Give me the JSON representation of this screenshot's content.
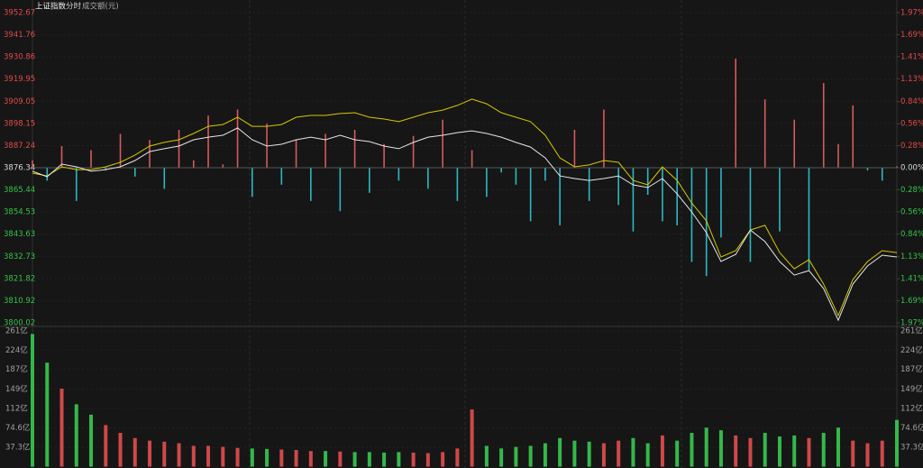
{
  "header": {
    "title": "上证指数",
    "tab": "分时",
    "volume_label": "成交额(元)"
  },
  "chart_data": [
    {
      "type": "line",
      "ylim": [
        3800.02,
        3952.67
      ],
      "yticks": [
        3952.67,
        3941.76,
        3930.86,
        3919.95,
        3909.05,
        3898.15,
        3887.24,
        3876.34,
        3865.44,
        3854.53,
        3843.63,
        3832.73,
        3821.82,
        3810.92,
        3800.02
      ],
      "y2lim": [
        -1.97,
        1.97
      ],
      "y2ticks": [
        {
          "value": 1.97,
          "label": "1.97%"
        },
        {
          "value": 1.69,
          "label": "1.69%"
        },
        {
          "value": 1.41,
          "label": "1.41%"
        },
        {
          "value": 1.13,
          "label": "1.13%"
        },
        {
          "value": 0.84,
          "label": "0.84%"
        },
        {
          "value": 0.56,
          "label": "0.56%"
        },
        {
          "value": 0.28,
          "label": "0.28%"
        },
        {
          "value": 0,
          "label": "0.00%"
        },
        {
          "value": -0.28,
          "label": "0.28%"
        },
        {
          "value": -0.56,
          "label": "0.56%"
        },
        {
          "value": -0.84,
          "label": "0.84%"
        },
        {
          "value": -1.13,
          "label": "1.13%"
        },
        {
          "value": -1.41,
          "label": "1.41%"
        },
        {
          "value": -1.69,
          "label": "1.69%"
        },
        {
          "value": -1.97,
          "label": "1.97%"
        }
      ],
      "up_color": "#e04a4a",
      "down_color": "#35c24a",
      "flat_color": "#d8d8d8",
      "series": [
        {
          "color": "#e6e6e6",
          "values": [
            3874.6,
            3871.9,
            3878.1,
            3876.8,
            3874.6,
            3875.4,
            3876.8,
            3879.9,
            3884.3,
            3885.7,
            3887.0,
            3890.1,
            3891.4,
            3892.3,
            3895.9,
            3890.1,
            3887.0,
            3887.9,
            3890.1,
            3891.4,
            3890.1,
            3892.3,
            3890.1,
            3889.2,
            3887.0,
            3885.7,
            3888.8,
            3891.4,
            3892.3,
            3893.6,
            3894.5,
            3893.2,
            3891.4,
            3888.8,
            3886.5,
            3881.2,
            3872.3,
            3871.0,
            3870.1,
            3871.0,
            3872.3,
            3867.9,
            3866.6,
            3871.0,
            3863.5,
            3854.6,
            3844.4,
            3830.2,
            3833.7,
            3845.7,
            3840.0,
            3830.2,
            3823.5,
            3825.7,
            3816.9,
            3801.3,
            3819.1,
            3828.0,
            3833.3,
            3832.4
          ]
        },
        {
          "color": "#d6c800",
          "values": [
            3873.7,
            3872.3,
            3876.8,
            3875.4,
            3875.4,
            3876.8,
            3879.0,
            3882.6,
            3887.0,
            3888.8,
            3890.1,
            3893.2,
            3896.7,
            3897.6,
            3901.2,
            3896.7,
            3896.7,
            3897.6,
            3901.2,
            3902.1,
            3902.1,
            3903.0,
            3903.4,
            3901.2,
            3900.3,
            3899.0,
            3901.2,
            3903.4,
            3904.7,
            3907.0,
            3910.1,
            3907.8,
            3903.4,
            3901.2,
            3899.0,
            3892.3,
            3881.2,
            3876.8,
            3877.7,
            3879.9,
            3879.0,
            3870.1,
            3867.9,
            3876.8,
            3870.1,
            3859.0,
            3850.2,
            3832.4,
            3835.5,
            3845.7,
            3848.0,
            3834.6,
            3826.6,
            3831.1,
            3819.1,
            3803.6,
            3821.3,
            3830.2,
            3835.5,
            3834.6
          ]
        }
      ],
      "power_bars": {
        "up_color": "#d85a5a",
        "down_color": "#2cb8c4",
        "values": [
          3880,
          3870,
          3887,
          3860,
          3885,
          3875,
          3893,
          3872,
          3890,
          3866,
          3895,
          3880,
          3902,
          3878,
          3905,
          3862,
          3898,
          3868,
          3890,
          3860,
          3893,
          3855,
          3895,
          3864,
          3888,
          3870,
          3892,
          3866,
          3900,
          3860,
          3885,
          3862,
          3874,
          3868,
          3850,
          3870,
          3848,
          3895,
          3860,
          3905,
          3858,
          3845,
          3863,
          3850,
          3848,
          3830,
          3823,
          3842,
          3930,
          3830,
          3910,
          3845,
          3900,
          3826,
          3918,
          3888,
          3907,
          3875,
          3870,
          3877
        ]
      }
    },
    {
      "type": "bar",
      "ylim": [
        0,
        261
      ],
      "yticks": [
        {
          "value": 261,
          "label": "261亿"
        },
        {
          "value": 224,
          "label": "224亿"
        },
        {
          "value": 187,
          "label": "187亿"
        },
        {
          "value": 149,
          "label": "149亿"
        },
        {
          "value": 112,
          "label": "112亿"
        },
        {
          "value": 74.6,
          "label": "74.6亿"
        },
        {
          "value": 37.3,
          "label": "37.3亿"
        }
      ],
      "up_color": "#d04848",
      "down_color": "#34b84a",
      "values": [
        255,
        200,
        150,
        120,
        100,
        80,
        65,
        55,
        50,
        48,
        45,
        40,
        40,
        38,
        36,
        35,
        34,
        33,
        32,
        30,
        30,
        29,
        28,
        28,
        27,
        28,
        27,
        26,
        28,
        35,
        110,
        40,
        35,
        38,
        40,
        45,
        55,
        50,
        48,
        45,
        50,
        55,
        45,
        60,
        50,
        65,
        75,
        70,
        60,
        55,
        65,
        58,
        60,
        55,
        65,
        75,
        50,
        45,
        50,
        90
      ]
    }
  ]
}
